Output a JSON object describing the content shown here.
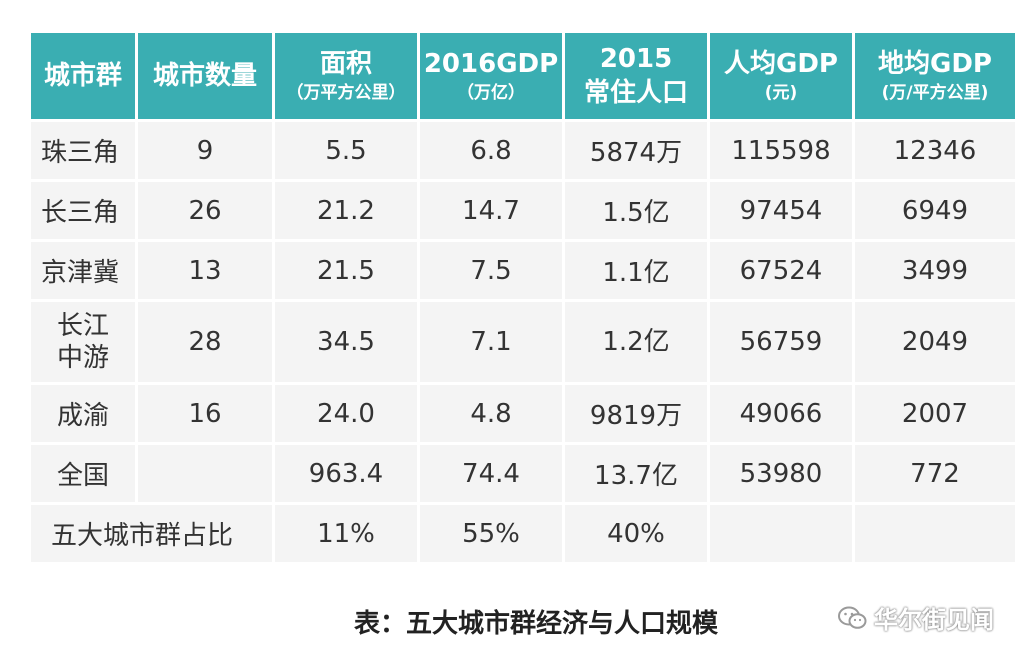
{
  "headers": [
    {
      "main": "城市群",
      "sub": ""
    },
    {
      "main": "城市数量",
      "sub": ""
    },
    {
      "main": "面积",
      "sub": "（万平方公里）"
    },
    {
      "main": "2016GDP",
      "sub": "（万亿）"
    },
    {
      "main": "2015",
      "sub": "常住人口"
    },
    {
      "main": "人均GDP",
      "sub": "(元)"
    },
    {
      "main": "地均GDP",
      "sub": "(万/平方公里)"
    }
  ],
  "rows": [
    [
      "珠三角",
      "9",
      "5.5",
      "6.8",
      "5874万",
      "115598",
      "12346"
    ],
    [
      "长三角",
      "26",
      "21.2",
      "14.7",
      "1.5亿",
      "97454",
      "6949"
    ],
    [
      "京津冀",
      "13",
      "21.5",
      "7.5",
      "1.1亿",
      "67524",
      "3499"
    ],
    [
      "长江中游",
      "28",
      "34.5",
      "7.1",
      "1.2亿",
      "56759",
      "2049"
    ],
    [
      "成渝",
      "16",
      "24.0",
      "4.8",
      "9819万",
      "49066",
      "2007"
    ],
    [
      "全国",
      "",
      "963.4",
      "74.4",
      "13.7亿",
      "53980",
      "772"
    ]
  ],
  "ratio_row": {
    "label": "五大城市群占比",
    "area": "11%",
    "gdp": "55%",
    "population": "40%"
  },
  "caption": "表：五大城市群经济与人口规模",
  "watermark": {
    "text": "华尔街见闻",
    "icon": "wechat-icon"
  }
}
